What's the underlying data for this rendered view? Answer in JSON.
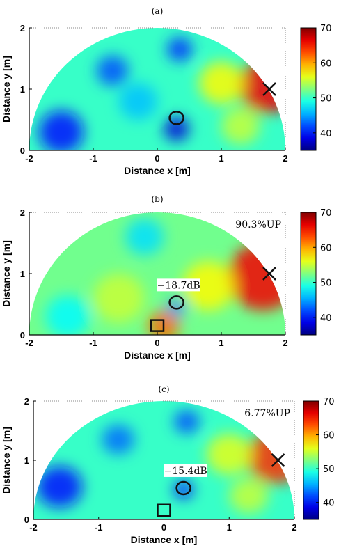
{
  "chart_data": [
    {
      "type": "heatmap",
      "panel_label": "(a)",
      "xlabel": "Distance x [m]",
      "ylabel": "Distance y [m]",
      "xlim": [
        -2,
        2
      ],
      "ylim": [
        0,
        2
      ],
      "xticks": [
        "-2",
        "-1",
        "0",
        "1",
        "2"
      ],
      "yticks": [
        "0",
        "1",
        "2"
      ],
      "colorbar": {
        "range": [
          35,
          70
        ],
        "ticks": [
          "40",
          "50",
          "60",
          "70"
        ]
      },
      "annotation": "",
      "db_label": "",
      "markers": [
        {
          "kind": "circle",
          "x": 0.3,
          "y": 0.53
        },
        {
          "kind": "cross",
          "x": 1.75,
          "y": 1.0
        }
      ],
      "hotspots": [
        {
          "x": 1.72,
          "y": 1.05,
          "r": 0.45,
          "value": 66
        },
        {
          "x": 1.0,
          "y": 1.1,
          "r": 0.35,
          "value": 57
        },
        {
          "x": 0.3,
          "y": 0.35,
          "r": 0.2,
          "value": 38
        },
        {
          "x": -1.5,
          "y": 0.3,
          "r": 0.35,
          "value": 40
        },
        {
          "x": -0.7,
          "y": 1.3,
          "r": 0.25,
          "value": 42
        },
        {
          "x": 0.35,
          "y": 1.65,
          "r": 0.2,
          "value": 41
        },
        {
          "x": -0.3,
          "y": 0.8,
          "r": 0.3,
          "value": 46
        },
        {
          "x": 1.3,
          "y": 0.4,
          "r": 0.3,
          "value": 55
        }
      ],
      "base_value": 50
    },
    {
      "type": "heatmap",
      "panel_label": "(b)",
      "xlabel": "Distance x [m]",
      "ylabel": "Distance y [m]",
      "xlim": [
        -2,
        2
      ],
      "ylim": [
        0,
        2
      ],
      "xticks": [
        "-2",
        "-1",
        "0",
        "1",
        "2"
      ],
      "yticks": [
        "0",
        "1",
        "2"
      ],
      "colorbar": {
        "range": [
          35,
          70
        ],
        "ticks": [
          "40",
          "50",
          "60",
          "70"
        ]
      },
      "annotation": "90.3%UP",
      "db_label": "−18.7dB",
      "markers": [
        {
          "kind": "circle",
          "x": 0.3,
          "y": 0.53
        },
        {
          "kind": "cross",
          "x": 1.75,
          "y": 1.0
        },
        {
          "kind": "square",
          "x": 0.0,
          "y": 0.05
        }
      ],
      "hotspots": [
        {
          "x": 1.65,
          "y": 0.95,
          "r": 0.55,
          "value": 66
        },
        {
          "x": 0.1,
          "y": 0.15,
          "r": 0.25,
          "value": 62
        },
        {
          "x": 0.8,
          "y": 0.8,
          "r": 0.4,
          "value": 57
        },
        {
          "x": -0.6,
          "y": 0.6,
          "r": 0.4,
          "value": 55
        },
        {
          "x": -1.4,
          "y": 0.3,
          "r": 0.35,
          "value": 48
        },
        {
          "x": 0.3,
          "y": 0.45,
          "r": 0.15,
          "value": 44
        },
        {
          "x": -0.2,
          "y": 1.6,
          "r": 0.3,
          "value": 47
        }
      ],
      "base_value": 52
    },
    {
      "type": "heatmap",
      "panel_label": "(c)",
      "xlabel": "Distance x [m]",
      "ylabel": "Distance y [m]",
      "xlim": [
        -2,
        2
      ],
      "ylim": [
        0,
        2
      ],
      "xticks": [
        "-2",
        "-1",
        "0",
        "1",
        "2"
      ],
      "yticks": [
        "0",
        "1",
        "2"
      ],
      "colorbar": {
        "range": [
          35,
          70
        ],
        "ticks": [
          "40",
          "50",
          "60",
          "70"
        ]
      },
      "annotation": "6.77%UP",
      "db_label": "−15.4dB",
      "markers": [
        {
          "kind": "circle",
          "x": 0.3,
          "y": 0.53
        },
        {
          "kind": "cross",
          "x": 1.75,
          "y": 1.0
        },
        {
          "kind": "square",
          "x": 0.0,
          "y": 0.05
        }
      ],
      "hotspots": [
        {
          "x": 1.72,
          "y": 1.05,
          "r": 0.45,
          "value": 64
        },
        {
          "x": 1.0,
          "y": 1.1,
          "r": 0.35,
          "value": 56
        },
        {
          "x": -1.6,
          "y": 0.55,
          "r": 0.35,
          "value": 40
        },
        {
          "x": -0.7,
          "y": 1.35,
          "r": 0.25,
          "value": 43
        },
        {
          "x": 0.35,
          "y": 1.65,
          "r": 0.2,
          "value": 42
        },
        {
          "x": 0.3,
          "y": 0.5,
          "r": 0.15,
          "value": 40
        },
        {
          "x": 1.3,
          "y": 0.4,
          "r": 0.3,
          "value": 55
        }
      ],
      "base_value": 50
    }
  ],
  "colors": {
    "frame": "#000000",
    "grid": "#888888",
    "marker": "#111111"
  }
}
